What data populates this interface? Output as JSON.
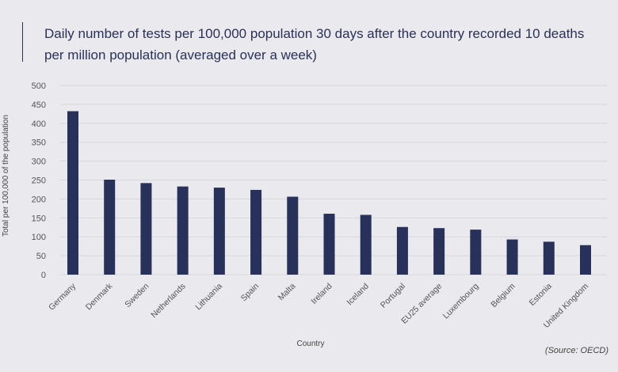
{
  "chart_data": {
    "type": "bar",
    "title": "Daily number of tests per 100,000 population 30 days after the country recorded 10 deaths per million population (averaged over a week)",
    "xlabel": "Country",
    "ylabel": "Total per 100,000 of the population",
    "ylim": [
      0,
      500
    ],
    "yticks": [
      0,
      50,
      100,
      150,
      200,
      250,
      300,
      350,
      400,
      450,
      500
    ],
    "grid": true,
    "categories": [
      "Germany",
      "Denmark",
      "Sweden",
      "Netherlands",
      "Lithuania",
      "Spain",
      "Malta",
      "Ireland",
      "Iceland",
      "Portugal",
      "EU25 average",
      "Luxembourg",
      "Belgium",
      "Estonia",
      "United Kingdom"
    ],
    "values": [
      432,
      251,
      242,
      233,
      230,
      224,
      206,
      161,
      158,
      126,
      123,
      119,
      93,
      87,
      78
    ],
    "bar_color": "#283159",
    "source": "(Source: OECD)"
  }
}
